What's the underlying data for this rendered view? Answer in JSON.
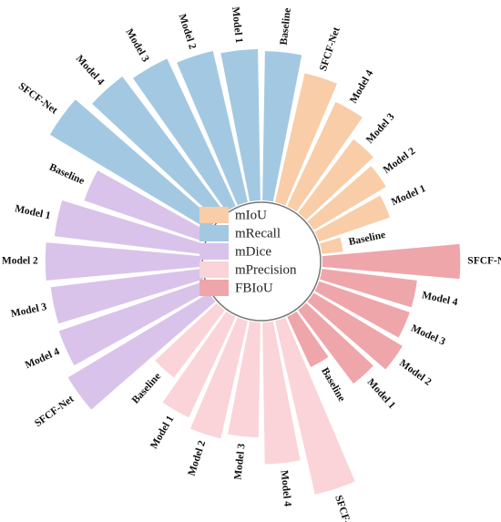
{
  "chart_data": {
    "type": "radial_bar",
    "categories": [
      "SFCF-Net",
      "Model 4",
      "Model 3",
      "Model 2",
      "Model 1",
      "Baseline"
    ],
    "rlim": [
      0,
      100
    ],
    "series": [
      {
        "name": "mIoU",
        "color": "#f8cda7",
        "values": [
          70,
          61,
          49,
          45,
          40,
          12
        ]
      },
      {
        "name": "mRecall",
        "color": "#a3c9e2",
        "values": [
          98,
          90,
          86,
          82,
          80,
          79
        ]
      },
      {
        "name": "mDice",
        "color": "#d9c3ea",
        "values": [
          87,
          81,
          80,
          82,
          78,
          67
        ]
      },
      {
        "name": "mPrecision",
        "color": "#fad4d8",
        "values": [
          94,
          75,
          61,
          64,
          59,
          45
        ]
      },
      {
        "name": "FBIoU",
        "color": "#eea6aa",
        "values": [
          73,
          51,
          51,
          55,
          49,
          30
        ]
      }
    ]
  }
}
